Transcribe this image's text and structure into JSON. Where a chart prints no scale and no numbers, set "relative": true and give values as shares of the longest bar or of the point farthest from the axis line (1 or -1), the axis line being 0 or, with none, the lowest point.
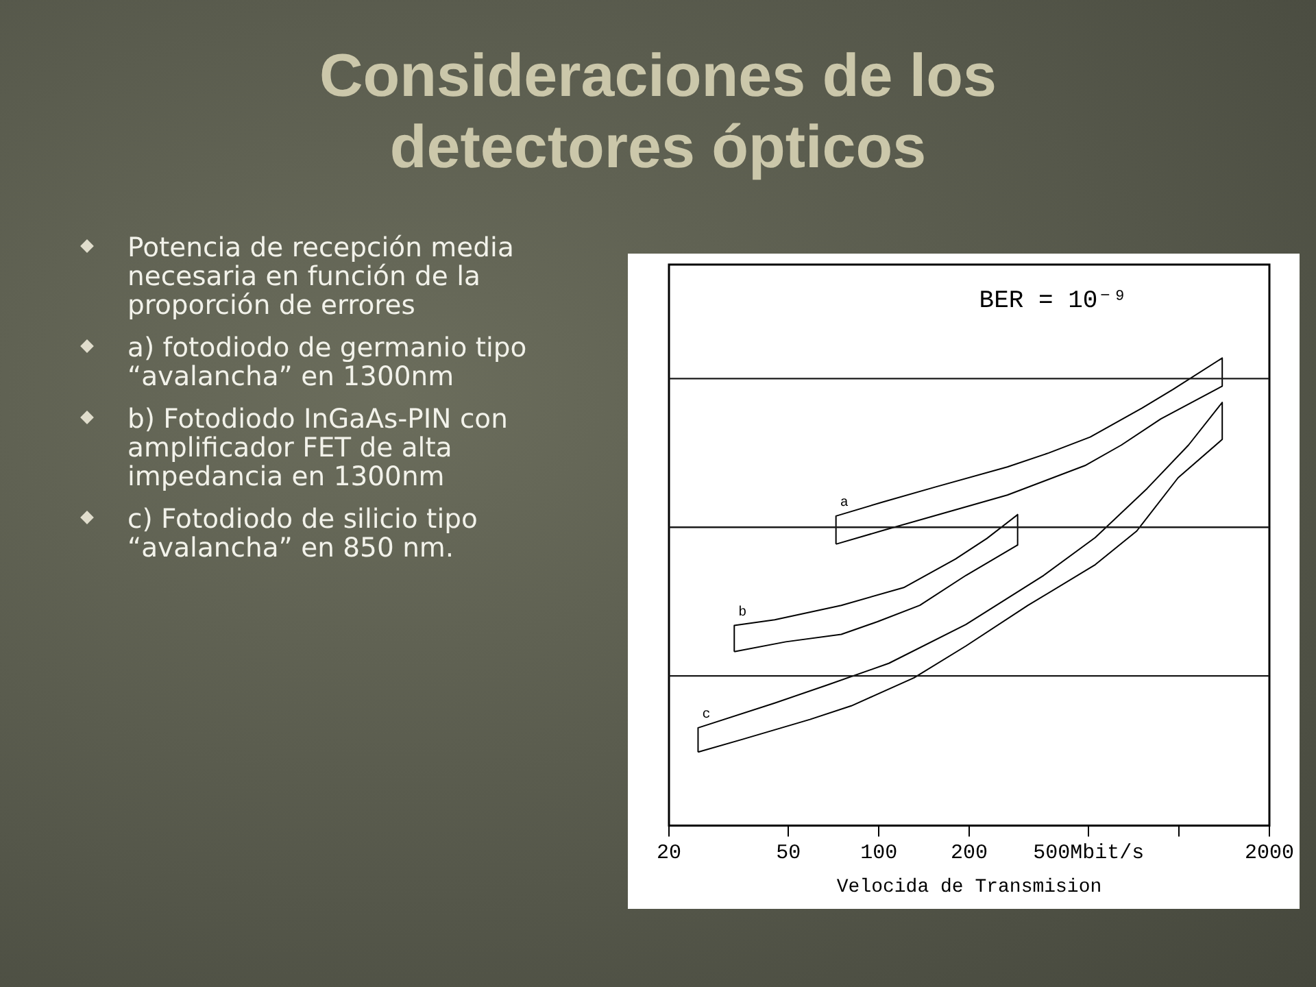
{
  "chart_data": {
    "type": "line",
    "title": "Consideraciones de los detectores ópticos",
    "subtitle": "BER = 10⁻⁹",
    "xlabel": "Velocida de Transmision",
    "relative": true,
    "log": "x",
    "marker": "none",
    "line_style": "solid",
    "xlim": [
      20,
      2000
    ],
    "xticks": [
      20,
      50,
      100,
      200,
      {
        "value": 500,
        "label": "500Mbit/s"
      },
      {
        "value": 1000,
        "label": null
      },
      2000
    ],
    "series": [
      {
        "name": "a",
        "color": "#000000",
        "x": [
          72,
          72,
          103,
          154,
          268,
          368,
          506,
          753,
          955,
          1393,
          1393
        ],
        "values": [
          0.602,
          0.662,
          0.692,
          0.724,
          0.767,
          0.797,
          0.831,
          0.893,
          0.933,
          1,
          0.94
        ]
      },
      {
        "color": "#000000",
        "x": [
          72,
          103,
          154,
          268,
          486,
          643,
          870,
          1393
        ],
        "values": [
          0.602,
          0.631,
          0.663,
          0.707,
          0.77,
          0.814,
          0.87,
          0.94
        ]
      },
      {
        "name": "b",
        "color": "#000000",
        "x": [
          33,
          33,
          45,
          75,
          121,
          180,
          229,
          290,
          290
        ],
        "values": [
          0.372,
          0.428,
          0.44,
          0.471,
          0.509,
          0.57,
          0.614,
          0.665,
          0.6
        ]
      },
      {
        "color": "#000000",
        "x": [
          33,
          49,
          75,
          99,
          137,
          195,
          290
        ],
        "values": [
          0.372,
          0.393,
          0.409,
          0.436,
          0.471,
          0.535,
          0.6
        ]
      },
      {
        "name": "c",
        "color": "#000000",
        "x": [
          25,
          25,
          45,
          67,
          108,
          195,
          354,
          526,
          783,
          1076,
          1393,
          1393
        ],
        "values": [
          0.157,
          0.209,
          0.262,
          0.3,
          0.347,
          0.43,
          0.535,
          0.616,
          0.721,
          0.814,
          0.905,
          0.826
        ]
      },
      {
        "color": "#000000",
        "x": [
          25,
          35,
          59,
          81,
          131,
          195,
          314,
          526,
          723,
          993,
          1393
        ],
        "values": [
          0.157,
          0.184,
          0.227,
          0.256,
          0.316,
          0.384,
          0.471,
          0.558,
          0.63,
          0.744,
          0.826
        ]
      }
    ],
    "ref_lines": [
      {
        "axis": "y",
        "value": 0.956,
        "color": "#1a1a1a"
      },
      {
        "axis": "y",
        "value": 0.638,
        "color": "#1a1a1a"
      },
      {
        "axis": "y",
        "value": 0.32,
        "color": "#1a1a1a"
      }
    ],
    "annotations": [
      "Potencia de recepción media necesaria en función de la proporción de errores",
      "a) fotodiodo de germanio tipo “avalancha” en 1300nm",
      "b) Fotodiodo InGaAs-PIN con amplificador FET de alta impedancia en 1300nm",
      "c) Fotodiodo de silicio tipo “avalancha” en 850 nm."
    ]
  }
}
